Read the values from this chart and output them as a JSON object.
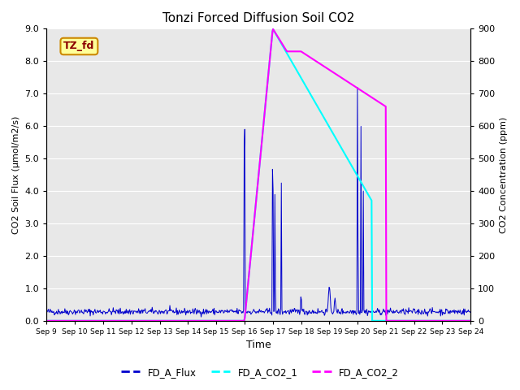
{
  "title": "Tonzi Forced Diffusion Soil CO2",
  "xlabel": "Time",
  "ylabel_left": "CO2 Soil Flux (μmol/m2/s)",
  "ylabel_right": "CO2 Concentration (ppm)",
  "ylim_left": [
    0.0,
    9.0
  ],
  "ylim_right": [
    0,
    900
  ],
  "yticks_left": [
    0.0,
    1.0,
    2.0,
    3.0,
    4.0,
    5.0,
    6.0,
    7.0,
    8.0,
    9.0
  ],
  "yticks_right": [
    0,
    100,
    200,
    300,
    400,
    500,
    600,
    700,
    800,
    900
  ],
  "xtick_labels": [
    "Sep 9",
    "Sep 10",
    "Sep 11",
    "Sep 12",
    "Sep 13",
    "Sep 14",
    "Sep 15",
    "Sep 16",
    "Sep 17",
    "Sep 18",
    "Sep 19",
    "Sep 20",
    "Sep 21",
    "Sep 22",
    "Sep 23",
    "Sep 24"
  ],
  "bg_color": "#e8e8e8",
  "grid_color": "#ffffff",
  "flux_color": "#0000cc",
  "co2_1_color": "#00ffff",
  "co2_2_color": "#ff00ff",
  "legend_labels": [
    "FD_A_Flux",
    "FD_A_CO2_1",
    "FD_A_CO2_2"
  ],
  "annotation_text": "TZ_fd",
  "annotation_bg": "#ffff99",
  "annotation_border": "#cc8800"
}
